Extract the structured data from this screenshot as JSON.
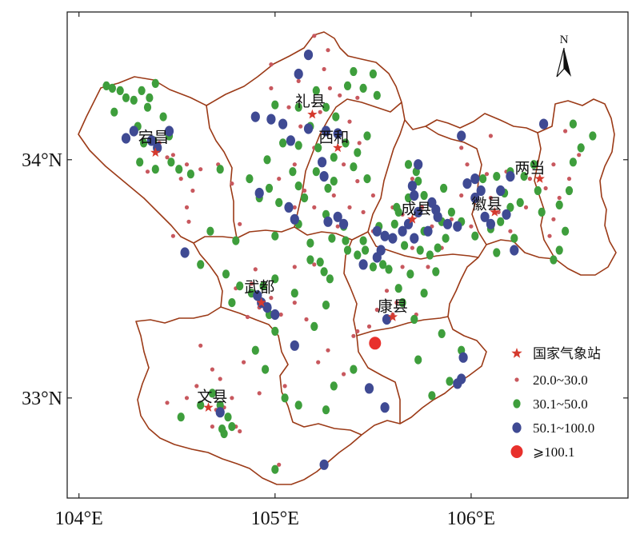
{
  "axes": {
    "x_ticks": [
      {
        "value": 104,
        "label": "104°E"
      },
      {
        "value": 105,
        "label": "105°E"
      },
      {
        "value": 106,
        "label": "106°E"
      }
    ],
    "y_ticks": [
      {
        "value": 34,
        "label": "34°N"
      },
      {
        "value": 33,
        "label": "33°N"
      }
    ],
    "x_range": [
      103.94,
      106.8
    ],
    "y_range": [
      32.58,
      34.62
    ]
  },
  "north_arrow": {
    "label": "N"
  },
  "colors": {
    "boundary": "#9b3a17",
    "frame": "#222222",
    "cat1": "#c8585e",
    "cat2": "#3e9e3c",
    "cat3": "#3f4a93",
    "cat4": "#e8302c",
    "star": "#d53a2e"
  },
  "legend": {
    "station_label": "国家气象站",
    "items": [
      {
        "key": "cat1",
        "label": "20.0~30.0"
      },
      {
        "key": "cat2",
        "label": "30.1~50.0"
      },
      {
        "key": "cat3",
        "label": "50.1~100.0"
      },
      {
        "key": "cat4",
        "label": "⩾100.1"
      }
    ]
  },
  "counties": [
    {
      "name": "礼县",
      "lon": 105.18,
      "lat": 34.19
    },
    {
      "name": "西和",
      "lon": 105.3,
      "lat": 34.04
    },
    {
      "name": "宕昌",
      "lon": 104.38,
      "lat": 34.04
    },
    {
      "name": "两当",
      "lon": 106.3,
      "lat": 33.91
    },
    {
      "name": "徽县",
      "lon": 106.08,
      "lat": 33.76
    },
    {
      "name": "成县",
      "lon": 105.72,
      "lat": 33.74
    },
    {
      "name": "武都",
      "lon": 104.92,
      "lat": 33.41
    },
    {
      "name": "康县",
      "lon": 105.6,
      "lat": 33.33
    },
    {
      "name": "文县",
      "lon": 104.68,
      "lat": 32.95
    }
  ],
  "stations": [
    {
      "lon": 105.19,
      "lat": 34.19
    },
    {
      "lon": 105.32,
      "lat": 34.05
    },
    {
      "lon": 104.39,
      "lat": 34.03
    },
    {
      "lon": 106.35,
      "lat": 33.92
    },
    {
      "lon": 106.12,
      "lat": 33.78
    },
    {
      "lon": 105.7,
      "lat": 33.75
    },
    {
      "lon": 104.93,
      "lat": 33.4
    },
    {
      "lon": 105.6,
      "lat": 33.34
    },
    {
      "lon": 104.66,
      "lat": 32.96
    }
  ],
  "points": {
    "cat1": [
      [
        105.2,
        34.52
      ],
      [
        105.27,
        34.46
      ],
      [
        104.98,
        34.4
      ],
      [
        105.25,
        34.38
      ],
      [
        105.12,
        34.33
      ],
      [
        105.28,
        34.3
      ],
      [
        104.98,
        34.3
      ],
      [
        105.33,
        34.27
      ],
      [
        105.42,
        34.26
      ],
      [
        105.07,
        34.22
      ],
      [
        105.23,
        34.2
      ],
      [
        105.13,
        34.14
      ],
      [
        105.38,
        34.16
      ],
      [
        105.27,
        34.11
      ],
      [
        105.43,
        34.07
      ],
      [
        105.2,
        34.05
      ],
      [
        105.1,
        33.98
      ],
      [
        105.35,
        33.98
      ],
      [
        105.02,
        33.92
      ],
      [
        105.24,
        33.93
      ],
      [
        105.42,
        33.91
      ],
      [
        105.15,
        33.87
      ],
      [
        105.3,
        33.85
      ],
      [
        105.5,
        33.85
      ],
      [
        105.1,
        33.8
      ],
      [
        105.2,
        33.8
      ],
      [
        105.38,
        33.8
      ],
      [
        105.45,
        33.78
      ],
      [
        105.5,
        33.7
      ],
      [
        105.32,
        33.72
      ],
      [
        104.41,
        34.07
      ],
      [
        104.45,
        34.01
      ],
      [
        104.35,
        33.95
      ],
      [
        104.52,
        33.92
      ],
      [
        104.58,
        33.87
      ],
      [
        104.62,
        33.96
      ],
      [
        104.71,
        33.98
      ],
      [
        104.78,
        33.9
      ],
      [
        104.55,
        33.8
      ],
      [
        104.56,
        33.74
      ],
      [
        104.48,
        33.68
      ],
      [
        104.82,
        33.73
      ],
      [
        104.48,
        34.02
      ],
      [
        104.55,
        33.98
      ],
      [
        104.8,
        33.46
      ],
      [
        104.88,
        33.48
      ],
      [
        104.95,
        33.47
      ],
      [
        104.98,
        33.42
      ],
      [
        104.92,
        33.38
      ],
      [
        104.86,
        33.34
      ],
      [
        105.03,
        33.35
      ],
      [
        105.1,
        33.4
      ],
      [
        105.2,
        33.56
      ],
      [
        105.1,
        33.55
      ],
      [
        104.9,
        33.54
      ],
      [
        105.16,
        33.33
      ],
      [
        105.22,
        33.15
      ],
      [
        105.05,
        33.05
      ],
      [
        105.27,
        33.2
      ],
      [
        105.35,
        33.1
      ],
      [
        105.4,
        33.26
      ],
      [
        104.62,
        33.22
      ],
      [
        104.68,
        33.12
      ],
      [
        104.72,
        33.08
      ],
      [
        104.6,
        33.05
      ],
      [
        104.55,
        33.0
      ],
      [
        104.45,
        32.98
      ],
      [
        104.74,
        32.96
      ],
      [
        104.78,
        33.0
      ],
      [
        104.84,
        33.15
      ],
      [
        104.8,
        32.88
      ],
      [
        104.7,
        32.95
      ],
      [
        104.82,
        32.86
      ],
      [
        104.68,
        32.88
      ],
      [
        104.92,
        33.02
      ],
      [
        105.02,
        32.72
      ],
      [
        105.52,
        33.37
      ],
      [
        105.57,
        33.45
      ],
      [
        105.62,
        33.4
      ],
      [
        105.48,
        33.3
      ],
      [
        105.65,
        33.55
      ],
      [
        105.7,
        33.63
      ],
      [
        105.55,
        33.62
      ],
      [
        105.6,
        33.35
      ],
      [
        105.42,
        33.28
      ],
      [
        105.78,
        33.55
      ],
      [
        105.72,
        33.35
      ],
      [
        105.7,
        33.92
      ],
      [
        105.75,
        33.8
      ],
      [
        105.65,
        33.77
      ],
      [
        105.8,
        33.72
      ],
      [
        105.85,
        33.63
      ],
      [
        105.9,
        33.75
      ],
      [
        105.95,
        33.85
      ],
      [
        105.6,
        33.8
      ],
      [
        106.05,
        33.88
      ],
      [
        106.1,
        33.84
      ],
      [
        106.0,
        33.72
      ],
      [
        106.2,
        33.7
      ],
      [
        106.14,
        33.78
      ],
      [
        106.08,
        33.94
      ],
      [
        105.95,
        34.05
      ],
      [
        106.1,
        34.1
      ],
      [
        106.18,
        33.95
      ],
      [
        105.98,
        33.98
      ],
      [
        106.3,
        33.92
      ],
      [
        106.38,
        33.88
      ],
      [
        106.42,
        33.98
      ],
      [
        106.28,
        33.8
      ],
      [
        106.42,
        33.75
      ],
      [
        106.45,
        33.84
      ],
      [
        106.4,
        33.68
      ],
      [
        106.5,
        33.92
      ],
      [
        106.48,
        34.12
      ],
      [
        106.55,
        34.02
      ]
    ],
    "cat2": [
      [
        104.14,
        34.31
      ],
      [
        104.17,
        34.3
      ],
      [
        104.21,
        34.29
      ],
      [
        104.24,
        34.26
      ],
      [
        104.28,
        34.25
      ],
      [
        104.32,
        34.29
      ],
      [
        104.36,
        34.26
      ],
      [
        104.39,
        34.32
      ],
      [
        104.35,
        34.22
      ],
      [
        104.18,
        34.2
      ],
      [
        104.3,
        34.14
      ],
      [
        104.33,
        34.07
      ],
      [
        104.38,
        34.08
      ],
      [
        104.31,
        33.99
      ],
      [
        104.39,
        33.96
      ],
      [
        104.47,
        33.99
      ],
      [
        104.51,
        33.96
      ],
      [
        104.43,
        34.18
      ],
      [
        104.46,
        34.1
      ],
      [
        104.57,
        33.94
      ],
      [
        104.72,
        33.96
      ],
      [
        105.0,
        34.23
      ],
      [
        105.12,
        34.22
      ],
      [
        105.21,
        34.29
      ],
      [
        105.37,
        34.31
      ],
      [
        105.4,
        34.37
      ],
      [
        105.5,
        34.36
      ],
      [
        105.45,
        34.3
      ],
      [
        105.52,
        34.27
      ],
      [
        105.26,
        34.22
      ],
      [
        105.18,
        34.14
      ],
      [
        105.31,
        34.18
      ],
      [
        105.36,
        34.07
      ],
      [
        105.42,
        34.03
      ],
      [
        105.3,
        34.01
      ],
      [
        105.22,
        34.05
      ],
      [
        105.12,
        34.06
      ],
      [
        105.04,
        34.07
      ],
      [
        104.96,
        34.0
      ],
      [
        105.09,
        33.95
      ],
      [
        105.21,
        33.95
      ],
      [
        105.3,
        33.91
      ],
      [
        105.4,
        33.97
      ],
      [
        105.47,
        33.92
      ],
      [
        105.27,
        33.88
      ],
      [
        105.12,
        33.89
      ],
      [
        104.97,
        33.88
      ],
      [
        104.92,
        33.84
      ],
      [
        104.87,
        33.92
      ],
      [
        105.02,
        33.82
      ],
      [
        105.15,
        33.84
      ],
      [
        105.26,
        33.77
      ],
      [
        105.12,
        33.73
      ],
      [
        105.0,
        33.68
      ],
      [
        105.18,
        33.65
      ],
      [
        105.35,
        33.72
      ],
      [
        105.37,
        33.62
      ],
      [
        105.29,
        33.67
      ],
      [
        105.45,
        33.66
      ],
      [
        105.47,
        34.1
      ],
      [
        104.67,
        33.7
      ],
      [
        104.8,
        33.66
      ],
      [
        104.62,
        33.56
      ],
      [
        104.75,
        33.52
      ],
      [
        104.82,
        33.47
      ],
      [
        104.88,
        33.44
      ],
      [
        104.78,
        33.4
      ],
      [
        105.0,
        33.5
      ],
      [
        105.1,
        33.44
      ],
      [
        105.18,
        33.58
      ],
      [
        105.25,
        33.53
      ],
      [
        105.28,
        33.5
      ],
      [
        105.26,
        33.39
      ],
      [
        105.2,
        33.3
      ],
      [
        104.94,
        33.47
      ],
      [
        104.97,
        33.35
      ],
      [
        105.23,
        33.57
      ],
      [
        105.0,
        33.28
      ],
      [
        104.9,
        33.2
      ],
      [
        104.95,
        33.12
      ],
      [
        105.05,
        33.0
      ],
      [
        105.12,
        32.97
      ],
      [
        105.3,
        33.05
      ],
      [
        105.4,
        33.12
      ],
      [
        105.5,
        33.55
      ],
      [
        105.42,
        33.6
      ],
      [
        105.36,
        33.66
      ],
      [
        105.26,
        32.95
      ],
      [
        105.0,
        32.7
      ],
      [
        104.68,
        33.02
      ],
      [
        104.72,
        32.97
      ],
      [
        104.76,
        32.92
      ],
      [
        104.78,
        32.88
      ],
      [
        104.74,
        32.85
      ],
      [
        104.62,
        32.97
      ],
      [
        104.52,
        32.92
      ],
      [
        104.73,
        32.87
      ],
      [
        105.63,
        33.46
      ],
      [
        105.58,
        33.54
      ],
      [
        105.66,
        33.64
      ],
      [
        105.74,
        33.62
      ],
      [
        105.79,
        33.6
      ],
      [
        105.69,
        33.52
      ],
      [
        105.76,
        33.44
      ],
      [
        105.65,
        33.4
      ],
      [
        105.71,
        33.33
      ],
      [
        105.73,
        33.16
      ],
      [
        105.85,
        33.27
      ],
      [
        105.95,
        33.2
      ],
      [
        105.89,
        33.07
      ],
      [
        105.8,
        33.01
      ],
      [
        105.55,
        33.56
      ],
      [
        105.46,
        33.62
      ],
      [
        105.56,
        33.68
      ],
      [
        105.61,
        33.73
      ],
      [
        105.68,
        33.84
      ],
      [
        105.73,
        33.91
      ],
      [
        105.76,
        33.85
      ],
      [
        105.76,
        33.7
      ],
      [
        105.85,
        33.74
      ],
      [
        105.9,
        33.78
      ],
      [
        105.87,
        33.67
      ],
      [
        105.95,
        33.74
      ],
      [
        106.02,
        33.68
      ],
      [
        106.1,
        33.71
      ],
      [
        106.15,
        33.74
      ],
      [
        106.2,
        33.8
      ],
      [
        106.25,
        33.82
      ],
      [
        106.17,
        33.86
      ],
      [
        105.86,
        33.88
      ],
      [
        105.72,
        33.95
      ],
      [
        105.68,
        33.98
      ],
      [
        105.62,
        33.8
      ],
      [
        105.53,
        33.72
      ],
      [
        105.63,
        33.78
      ],
      [
        106.13,
        33.61
      ],
      [
        106.22,
        33.67
      ],
      [
        106.34,
        33.87
      ],
      [
        106.36,
        33.78
      ],
      [
        106.45,
        33.81
      ],
      [
        106.48,
        33.7
      ],
      [
        106.5,
        33.87
      ],
      [
        106.45,
        33.62
      ],
      [
        106.42,
        33.58
      ],
      [
        106.06,
        33.92
      ],
      [
        106.13,
        33.93
      ],
      [
        106.2,
        33.95
      ],
      [
        106.27,
        33.93
      ],
      [
        106.32,
        33.98
      ],
      [
        106.52,
        34.15
      ],
      [
        106.56,
        34.05
      ],
      [
        106.62,
        34.1
      ],
      [
        106.52,
        33.99
      ],
      [
        105.83,
        33.63
      ],
      [
        105.82,
        33.53
      ]
    ],
    "cat3": [
      [
        105.17,
        34.44
      ],
      [
        105.12,
        34.36
      ],
      [
        104.9,
        34.18
      ],
      [
        104.98,
        34.17
      ],
      [
        105.04,
        34.15
      ],
      [
        105.08,
        34.08
      ],
      [
        105.17,
        34.13
      ],
      [
        105.26,
        34.12
      ],
      [
        105.32,
        34.11
      ],
      [
        105.24,
        33.99
      ],
      [
        105.25,
        33.93
      ],
      [
        104.92,
        33.86
      ],
      [
        105.07,
        33.8
      ],
      [
        105.1,
        33.75
      ],
      [
        105.27,
        33.74
      ],
      [
        105.35,
        33.73
      ],
      [
        105.32,
        33.76
      ],
      [
        104.24,
        34.09
      ],
      [
        104.28,
        34.12
      ],
      [
        104.37,
        34.08
      ],
      [
        104.4,
        34.05
      ],
      [
        104.46,
        34.12
      ],
      [
        104.54,
        33.61
      ],
      [
        104.93,
        33.4
      ],
      [
        104.91,
        33.43
      ],
      [
        104.96,
        33.38
      ],
      [
        105.0,
        33.35
      ],
      [
        105.1,
        33.22
      ],
      [
        104.72,
        32.94
      ],
      [
        105.25,
        32.72
      ],
      [
        105.45,
        33.56
      ],
      [
        105.54,
        33.62
      ],
      [
        105.6,
        33.67
      ],
      [
        105.65,
        33.7
      ],
      [
        105.68,
        33.73
      ],
      [
        105.71,
        33.67
      ],
      [
        105.73,
        33.78
      ],
      [
        105.78,
        33.7
      ],
      [
        105.83,
        33.76
      ],
      [
        105.88,
        33.73
      ],
      [
        105.93,
        33.72
      ],
      [
        105.98,
        33.9
      ],
      [
        106.02,
        33.84
      ],
      [
        106.05,
        33.87
      ],
      [
        106.15,
        33.87
      ],
      [
        106.2,
        33.93
      ],
      [
        106.18,
        33.77
      ],
      [
        106.1,
        33.73
      ],
      [
        105.71,
        33.85
      ],
      [
        105.7,
        33.89
      ],
      [
        105.73,
        33.98
      ],
      [
        105.52,
        33.7
      ],
      [
        105.56,
        33.68
      ],
      [
        105.52,
        33.59
      ],
      [
        105.57,
        33.33
      ],
      [
        105.95,
        33.08
      ],
      [
        105.93,
        33.06
      ],
      [
        105.96,
        33.17
      ],
      [
        105.56,
        32.96
      ],
      [
        105.48,
        33.04
      ],
      [
        106.22,
        33.62
      ],
      [
        106.37,
        34.15
      ],
      [
        105.95,
        34.1
      ],
      [
        105.8,
        33.82
      ],
      [
        105.82,
        33.79
      ],
      [
        106.02,
        33.92
      ],
      [
        106.07,
        33.76
      ]
    ],
    "cat4": [
      [
        105.51,
        33.23
      ]
    ]
  }
}
